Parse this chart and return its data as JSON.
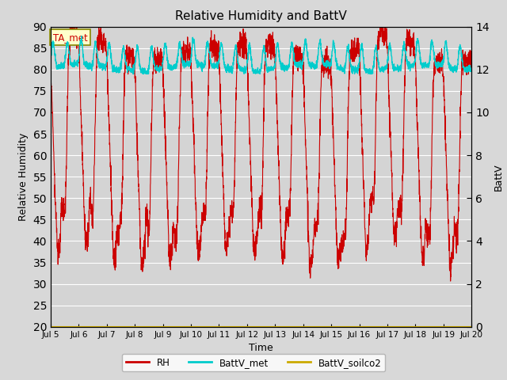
{
  "title": "Relative Humidity and BattV",
  "xlabel": "Time",
  "ylabel_left": "Relative Humidity",
  "ylabel_right": "BattV",
  "ylim_left": [
    20,
    90
  ],
  "ylim_right": [
    0,
    14
  ],
  "yticks_left": [
    20,
    25,
    30,
    35,
    40,
    45,
    50,
    55,
    60,
    65,
    70,
    75,
    80,
    85,
    90
  ],
  "yticks_right": [
    0,
    2,
    4,
    6,
    8,
    10,
    12,
    14
  ],
  "bg_color": "#d8d8d8",
  "plot_bg_color": "#d4d4d4",
  "rh_color": "#cc0000",
  "battv_met_color": "#00cccc",
  "battv_soilco2_color": "#ccaa00",
  "legend_label_rh": "RH",
  "legend_label_battv_met": "BattV_met",
  "legend_label_battv_soilco2": "BattV_soilco2",
  "annotation_text": "TA_met",
  "xtick_labels": [
    "Jul 5",
    "Jul 6",
    "Jul 7",
    "Jul 8",
    "Jul 9",
    "Jul 10",
    "Jul 11",
    "Jul 12",
    "Jul 13",
    "Jul 14",
    "Jul 15",
    "Jul 16",
    "Jul 17",
    "Jul 18",
    "Jul 19",
    "Jul 20"
  ],
  "num_days": 15
}
